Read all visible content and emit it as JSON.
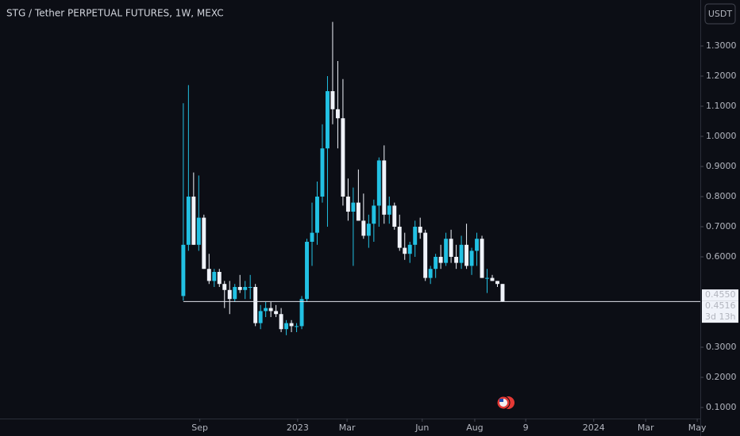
{
  "chart_data": {
    "type": "candlestick",
    "title": "STG / Tether PERPETUAL FUTURES, 1W, MEXC",
    "currency": "USDT",
    "up_color": "#22c1e3",
    "down_color": "#f0f3fa",
    "open": [
      0.47,
      0.64,
      0.8,
      0.64,
      0.73,
      0.56,
      0.52,
      0.55,
      0.51,
      0.49,
      0.46,
      0.5,
      0.49,
      0.5,
      0.5,
      0.38,
      0.42,
      0.43,
      0.42,
      0.41,
      0.36,
      0.38,
      0.37,
      0.37,
      0.46,
      0.65,
      0.68,
      0.8,
      0.96,
      1.15,
      1.09,
      1.06,
      0.8,
      0.75,
      0.78,
      0.72,
      0.67,
      0.71,
      0.77,
      0.92,
      0.74,
      0.77,
      0.7,
      0.63,
      0.61,
      0.64,
      0.7,
      0.68,
      0.53,
      0.56,
      0.6,
      0.58,
      0.66,
      0.6,
      0.58,
      0.64,
      0.57,
      0.62,
      0.66,
      0.53,
      0.53,
      0.52,
      0.51
    ],
    "high": [
      1.11,
      1.17,
      0.88,
      0.87,
      0.74,
      0.61,
      0.56,
      0.56,
      0.52,
      0.52,
      0.51,
      0.54,
      0.52,
      0.54,
      0.51,
      0.44,
      0.45,
      0.45,
      0.44,
      0.43,
      0.39,
      0.39,
      0.38,
      0.47,
      0.66,
      0.78,
      0.85,
      1.04,
      1.2,
      1.38,
      1.25,
      1.19,
      0.86,
      0.83,
      0.89,
      0.81,
      0.74,
      0.79,
      0.93,
      0.97,
      0.8,
      0.78,
      0.74,
      0.68,
      0.65,
      0.72,
      0.73,
      0.69,
      0.57,
      0.61,
      0.64,
      0.68,
      0.69,
      0.64,
      0.67,
      0.71,
      0.63,
      0.68,
      0.67,
      0.56,
      0.54,
      0.52,
      0.51
    ],
    "low": [
      0.455,
      0.62,
      0.64,
      0.62,
      0.56,
      0.51,
      0.5,
      0.5,
      0.43,
      0.41,
      0.45,
      0.48,
      0.46,
      0.46,
      0.37,
      0.36,
      0.4,
      0.4,
      0.4,
      0.35,
      0.34,
      0.35,
      0.35,
      0.36,
      0.45,
      0.57,
      0.64,
      0.78,
      0.7,
      1.04,
      0.96,
      0.77,
      0.72,
      0.57,
      0.72,
      0.66,
      0.63,
      0.65,
      0.7,
      0.71,
      0.71,
      0.69,
      0.62,
      0.59,
      0.58,
      0.6,
      0.66,
      0.52,
      0.51,
      0.53,
      0.56,
      0.57,
      0.58,
      0.56,
      0.56,
      0.56,
      0.54,
      0.57,
      0.53,
      0.48,
      0.52,
      0.5,
      0.45
    ],
    "close": [
      0.64,
      0.8,
      0.64,
      0.73,
      0.56,
      0.52,
      0.55,
      0.51,
      0.49,
      0.46,
      0.5,
      0.49,
      0.5,
      0.5,
      0.38,
      0.42,
      0.43,
      0.42,
      0.41,
      0.36,
      0.38,
      0.37,
      0.37,
      0.46,
      0.65,
      0.68,
      0.8,
      0.96,
      1.15,
      1.09,
      1.06,
      0.8,
      0.75,
      0.78,
      0.72,
      0.67,
      0.71,
      0.77,
      0.92,
      0.74,
      0.77,
      0.7,
      0.63,
      0.61,
      0.64,
      0.7,
      0.68,
      0.53,
      0.56,
      0.6,
      0.58,
      0.66,
      0.6,
      0.58,
      0.64,
      0.57,
      0.62,
      0.66,
      0.53,
      0.53,
      0.52,
      0.51,
      0.4516
    ],
    "xlim": [
      -35.6,
      100.4
    ],
    "xticks": [
      {
        "value": 3.2,
        "label": "Sep"
      },
      {
        "value": 22.2,
        "label": "2023"
      },
      {
        "value": 31.8,
        "label": "Mar"
      },
      {
        "value": 46.4,
        "label": "Jun"
      },
      {
        "value": 56.6,
        "label": "Aug"
      },
      {
        "value": 66.5,
        "label": "9"
      },
      {
        "value": 79.7,
        "label": "2024"
      },
      {
        "value": 89.8,
        "label": "Mar"
      },
      {
        "value": 99.8,
        "label": "May"
      }
    ],
    "ylim": [
      0.0632,
      1.4526
    ],
    "yticks": [
      {
        "value": 1.3,
        "label": "1.3000"
      },
      {
        "value": 1.2,
        "label": "1.2000"
      },
      {
        "value": 1.1,
        "label": "1.1000"
      },
      {
        "value": 1.0,
        "label": "1.0000"
      },
      {
        "value": 0.9,
        "label": "0.9000"
      },
      {
        "value": 0.8,
        "label": "0.8000"
      },
      {
        "value": 0.7,
        "label": "0.7000"
      },
      {
        "value": 0.6,
        "label": "0.6000"
      },
      {
        "value": 0.3,
        "label": "0.3000"
      },
      {
        "value": 0.2,
        "label": "0.2000"
      },
      {
        "value": 0.1,
        "label": "0.1000"
      }
    ],
    "price_labels": [
      {
        "value": 0.455,
        "label": "0.4550"
      },
      {
        "value": 0.4516,
        "label": "0.4516"
      }
    ],
    "countdown": "3d 13h"
  }
}
